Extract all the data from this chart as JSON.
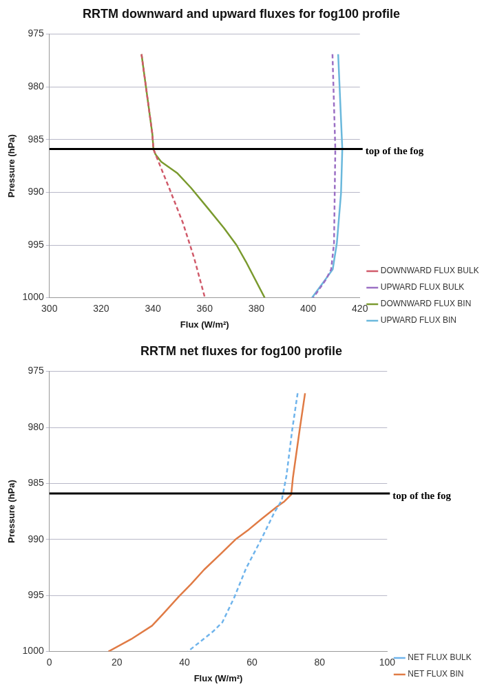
{
  "chart_data": [
    {
      "type": "line",
      "title": "RRTM downward and upward fluxes for fog100 profile",
      "xlabel": "Flux (W/m²)",
      "ylabel": "Pressure (hPa)",
      "xlim": [
        300,
        420
      ],
      "xticks": [
        300,
        320,
        340,
        360,
        380,
        400,
        420
      ],
      "ylim": [
        1000,
        975
      ],
      "yticks": [
        975,
        980,
        985,
        990,
        995,
        1000
      ],
      "grid": "y",
      "legend": "right",
      "marker": "none",
      "ref_lines": [
        {
          "axis": "y",
          "value": 985.9,
          "label": "top of the fog",
          "color": "#000000"
        }
      ],
      "series": [
        {
          "name": "DOWNWARD FLUX BULK",
          "color": "#d05a6a",
          "line_style": "dashed",
          "x": [
            335.6,
            339.8,
            340.2,
            341,
            346.3,
            351.6,
            355.9,
            360.1
          ],
          "values": [
            976.9,
            984.5,
            985.9,
            986.4,
            989.6,
            992.9,
            996.2,
            1000
          ]
        },
        {
          "name": "UPWARD FLUX BULK",
          "color": "#9b6fc4",
          "line_style": "dashed",
          "x": [
            409.4,
            410.5,
            410,
            408.9,
            406.8,
            402
          ],
          "values": [
            976.9,
            985.9,
            994.8,
            997.3,
            998.3,
            1000
          ]
        },
        {
          "name": "DOWNWARD FLUX BIN",
          "color": "#7a9a2e",
          "line_style": "solid",
          "x": [
            335.6,
            339.8,
            340.2,
            341,
            343.2,
            349.5,
            354.8,
            361.2,
            367.5,
            372.3,
            376,
            383.2
          ],
          "values": [
            976.9,
            984.5,
            985.9,
            986.4,
            987.1,
            988.2,
            989.6,
            991.5,
            993.4,
            995,
            996.6,
            1000
          ]
        },
        {
          "name": "UPWARD FLUX BIN",
          "color": "#6ab8dc",
          "line_style": "solid",
          "x": [
            411.6,
            413.2,
            412.7,
            411.1,
            409.5,
            406.3,
            401.5
          ],
          "values": [
            976.9,
            985.9,
            990.1,
            994.8,
            997.3,
            998.4,
            1000
          ]
        }
      ]
    },
    {
      "type": "line",
      "title": "RRTM net fluxes for fog100 profile",
      "xlabel": "Flux (W/m²)",
      "ylabel": "Pressure (hPa)",
      "xlim": [
        0,
        100
      ],
      "xticks": [
        0,
        20,
        40,
        60,
        80,
        100
      ],
      "ylim": [
        1000,
        975
      ],
      "yticks": [
        975,
        980,
        985,
        990,
        995,
        1000
      ],
      "grid": "y",
      "legend": "right",
      "marker": "none",
      "ref_lines": [
        {
          "axis": "y",
          "value": 985.9,
          "label": "top of the fog",
          "color": "#000000"
        }
      ],
      "series": [
        {
          "name": "NET FLUX BULK",
          "color": "#6fb4ec",
          "line_style": "dashed",
          "x": [
            73.5,
            71.9,
            70.2,
            68.8,
            66.6,
            62.7,
            58.2,
            54.7,
            51.2,
            48.5,
            41
          ],
          "values": [
            976.95,
            980.2,
            984.3,
            986.5,
            987.6,
            990,
            992.6,
            995.2,
            997.4,
            998.2,
            1000
          ]
        },
        {
          "name": "NET FLUX BIN",
          "color": "#e07b45",
          "line_style": "solid",
          "x": [
            75.7,
            74.2,
            72.1,
            71.6,
            69.6,
            67.3,
            62.7,
            59.1,
            55.1,
            50.7,
            45.8,
            41.9,
            38.3,
            33.5,
            30.4,
            24.2,
            17.5
          ],
          "values": [
            976.95,
            980,
            984.5,
            986,
            986.6,
            987.1,
            988.2,
            989.1,
            990,
            991.3,
            992.7,
            994,
            995.1,
            996.7,
            997.7,
            998.9,
            1000
          ]
        }
      ]
    }
  ]
}
